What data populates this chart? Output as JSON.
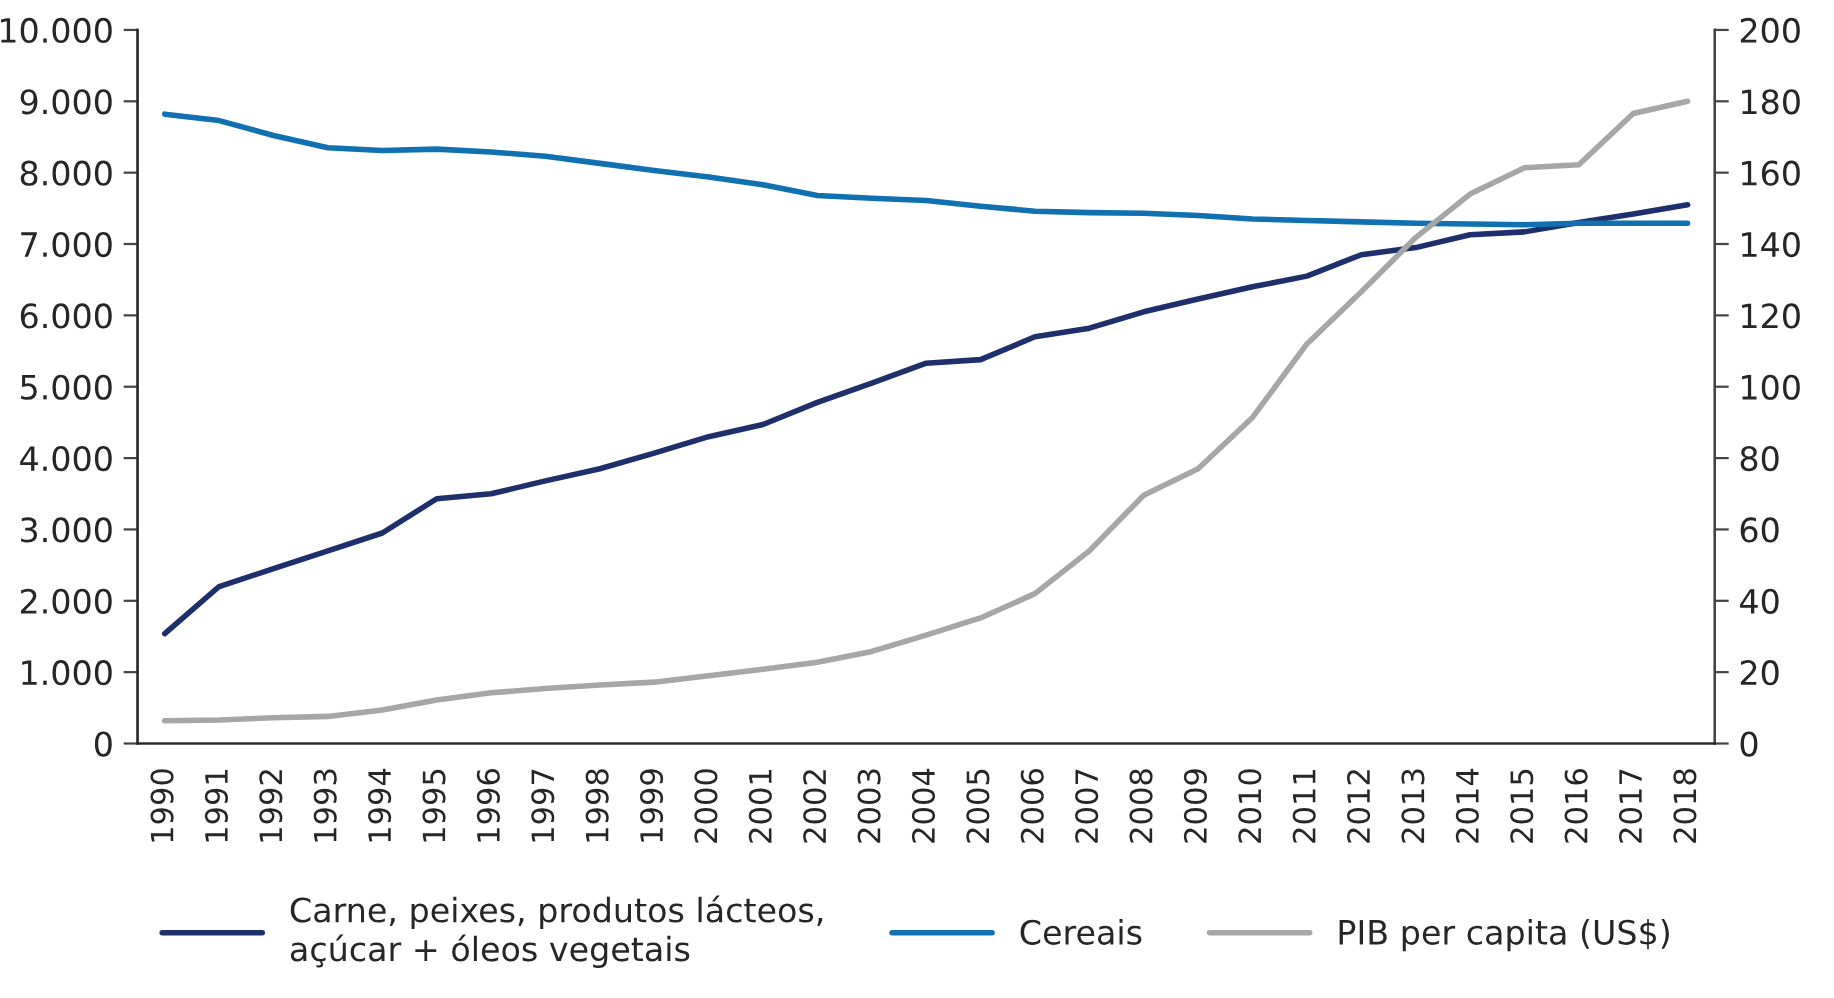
{
  "chart_data": {
    "type": "line",
    "categories": [
      "1990",
      "1991",
      "1992",
      "1993",
      "1994",
      "1995",
      "1996",
      "1997",
      "1998",
      "1999",
      "2000",
      "2001",
      "2002",
      "2003",
      "2004",
      "2005",
      "2006",
      "2007",
      "2008",
      "2009",
      "2010",
      "2011",
      "2012",
      "2013",
      "2014",
      "2015",
      "2016",
      "2017",
      "2018"
    ],
    "series": [
      {
        "name": "Carne, peixes, produtos lácteos,\naçúcar + óleos vegetais",
        "color": "#1f2f6b",
        "values": [
          1540,
          2200,
          2450,
          2700,
          2950,
          3430,
          3500,
          3680,
          3850,
          4070,
          4300,
          4470,
          4780,
          5050,
          5330,
          5380,
          5700,
          5820,
          6050,
          6230,
          6400,
          6550,
          6850,
          6950,
          7130,
          7170,
          7300,
          7420,
          7550
        ]
      },
      {
        "name": "Cereais",
        "color": "#1070b0",
        "values": [
          8820,
          8730,
          8520,
          8350,
          8310,
          8330,
          8290,
          8230,
          8130,
          8030,
          7940,
          7830,
          7680,
          7640,
          7610,
          7530,
          7460,
          7440,
          7430,
          7400,
          7350,
          7330,
          7310,
          7290,
          7280,
          7270,
          7290,
          7290,
          7290
        ]
      },
      {
        "name": "PIB per capita (US$)",
        "color": "#a6a6a6",
        "axis": "y2",
        "values": [
          6.4,
          6.6,
          7.2,
          7.6,
          9.4,
          12.2,
          14.2,
          15.4,
          16.4,
          17.2,
          19.0,
          20.8,
          22.8,
          25.8,
          30.4,
          35.2,
          42,
          54,
          69.6,
          77,
          91.4,
          112,
          126.6,
          141.8,
          154,
          161.4,
          162.2,
          176.6,
          180
        ]
      }
    ],
    "ylim": [
      0,
      10000
    ],
    "yticks": [
      0,
      {
        "value": 1000,
        "label": "1.000"
      },
      {
        "value": 2000,
        "label": "2.000"
      },
      {
        "value": 3000,
        "label": "3.000"
      },
      {
        "value": 4000,
        "label": "4.000"
      },
      {
        "value": 5000,
        "label": "5.000"
      },
      {
        "value": 6000,
        "label": "6.000"
      },
      {
        "value": 7000,
        "label": "7.000"
      },
      {
        "value": 8000,
        "label": "8.000"
      },
      {
        "value": 9000,
        "label": "9.000"
      },
      {
        "value": 10000,
        "label": "10.000"
      }
    ],
    "y2lim": [
      0,
      200
    ],
    "y2ticks": [
      0,
      20,
      40,
      60,
      80,
      100,
      120,
      140,
      160,
      180,
      200
    ],
    "legend": "bottom",
    "grid": false,
    "marker": "none",
    "line_style": "solid"
  }
}
